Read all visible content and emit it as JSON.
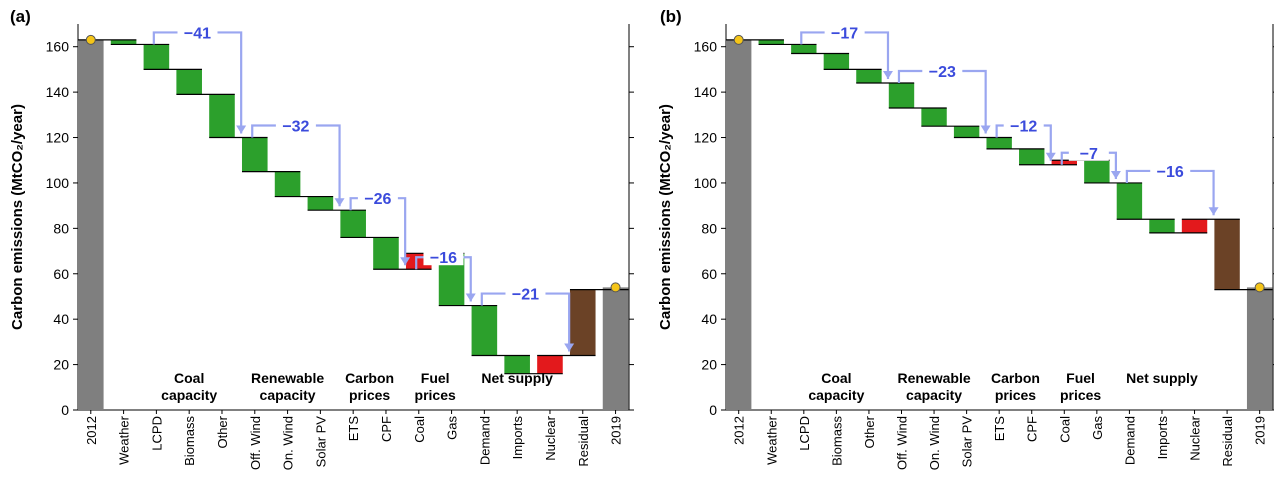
{
  "colors": {
    "bar_grey": "#7f7f7f",
    "decrease_green": "#2ca02c",
    "increase_red": "#e3191c",
    "residual_brown": "#6b4226",
    "marker_yellow": "#f5c518",
    "bracket_blue": "#9aa6f0",
    "bracket_text": "#3b4bdc"
  },
  "chart_data": [
    {
      "type": "waterfall",
      "panel": "(a)",
      "ylabel": "Carbon emissions (MtCO₂/year)",
      "ylim": [
        0,
        170
      ],
      "yticks": [
        0,
        20,
        40,
        60,
        80,
        100,
        120,
        140,
        160
      ],
      "start": {
        "label": "2012",
        "value": 163
      },
      "end": {
        "label": "2019",
        "value": 54
      },
      "steps": [
        {
          "label": "Weather",
          "delta": -2
        },
        {
          "label": "LCPD",
          "delta": -11
        },
        {
          "label": "Biomass",
          "delta": -11
        },
        {
          "label": "Other",
          "delta": -19
        },
        {
          "label": "Off. Wind",
          "delta": -15
        },
        {
          "label": "On. Wind",
          "delta": -11
        },
        {
          "label": "Solar PV",
          "delta": -6
        },
        {
          "label": "ETS",
          "delta": -12
        },
        {
          "label": "CPF",
          "delta": -14
        },
        {
          "label": "Coal",
          "delta": 7
        },
        {
          "label": "Gas",
          "delta": -23
        },
        {
          "label": "Demand",
          "delta": -22
        },
        {
          "label": "Imports",
          "delta": -8
        },
        {
          "label": "Nuclear",
          "delta": 8
        },
        {
          "label": "Residual",
          "delta": 29
        }
      ],
      "groups": [
        {
          "line1": "Coal",
          "line2": "capacity",
          "from": 1,
          "to": 3,
          "total": "−41"
        },
        {
          "line1": "Renewable",
          "line2": "capacity",
          "from": 4,
          "to": 6,
          "total": "−32"
        },
        {
          "line1": "Carbon",
          "line2": "prices",
          "from": 7,
          "to": 8,
          "total": "−26"
        },
        {
          "line1": "Fuel",
          "line2": "prices",
          "from": 9,
          "to": 10,
          "total": "−16"
        },
        {
          "line1": "Net supply",
          "line2": "",
          "from": 11,
          "to": 13,
          "total": "−21"
        }
      ]
    },
    {
      "type": "waterfall",
      "panel": "(b)",
      "ylabel": "Carbon emissions (MtCO₂/year)",
      "ylim": [
        0,
        170
      ],
      "yticks": [
        0,
        20,
        40,
        60,
        80,
        100,
        120,
        140,
        160
      ],
      "start": {
        "label": "2012",
        "value": 163
      },
      "end": {
        "label": "2019",
        "value": 54
      },
      "steps": [
        {
          "label": "Weather",
          "delta": -2
        },
        {
          "label": "LCPD",
          "delta": -4
        },
        {
          "label": "Biomass",
          "delta": -7
        },
        {
          "label": "Other",
          "delta": -6
        },
        {
          "label": "Off. Wind",
          "delta": -11
        },
        {
          "label": "On. Wind",
          "delta": -8
        },
        {
          "label": "Solar PV",
          "delta": -5
        },
        {
          "label": "ETS",
          "delta": -5
        },
        {
          "label": "CPF",
          "delta": -7
        },
        {
          "label": "Coal",
          "delta": 2
        },
        {
          "label": "Gas",
          "delta": -10
        },
        {
          "label": "Demand",
          "delta": -16
        },
        {
          "label": "Imports",
          "delta": -6
        },
        {
          "label": "Nuclear",
          "delta": 6
        },
        {
          "label": "Residual",
          "delta": -31
        }
      ],
      "groups": [
        {
          "line1": "Coal",
          "line2": "capacity",
          "from": 1,
          "to": 3,
          "total": "−17"
        },
        {
          "line1": "Renewable",
          "line2": "capacity",
          "from": 4,
          "to": 6,
          "total": "−23"
        },
        {
          "line1": "Carbon",
          "line2": "prices",
          "from": 7,
          "to": 8,
          "total": "−12"
        },
        {
          "line1": "Fuel",
          "line2": "prices",
          "from": 9,
          "to": 10,
          "total": "−7"
        },
        {
          "line1": "Net supply",
          "line2": "",
          "from": 11,
          "to": 13,
          "total": "−16"
        }
      ]
    }
  ]
}
